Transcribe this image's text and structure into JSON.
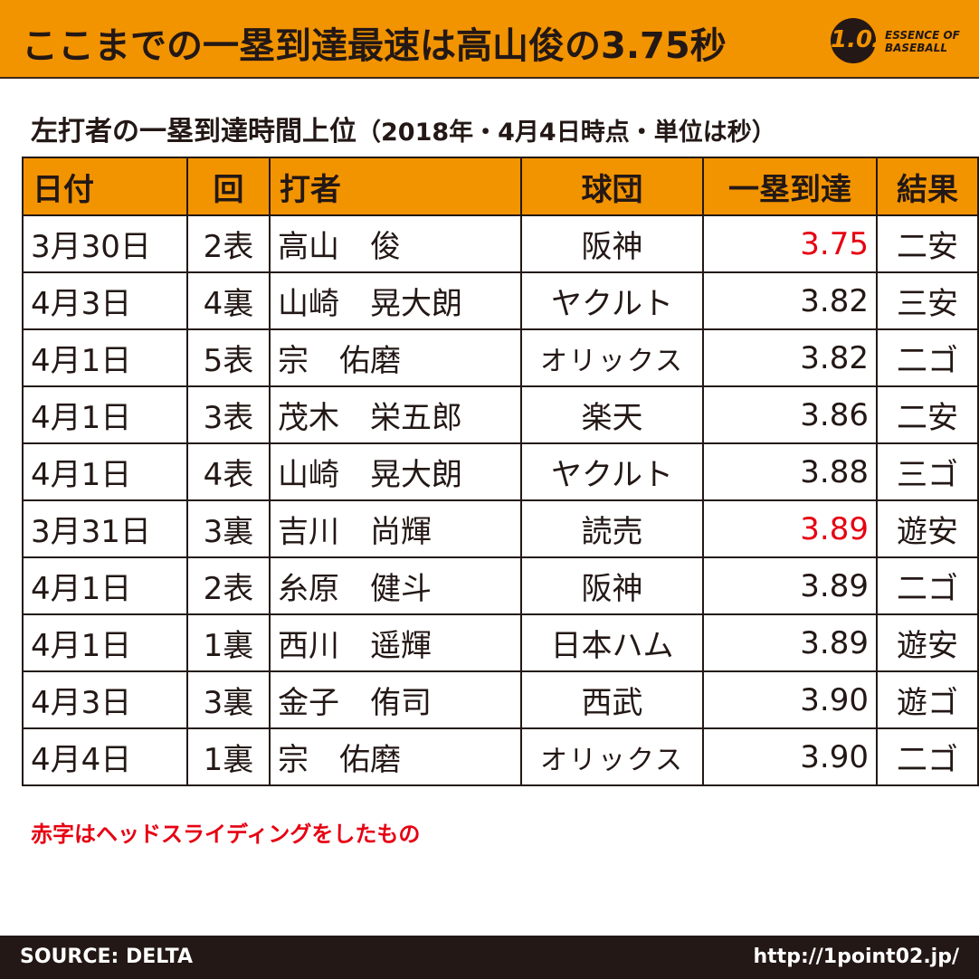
{
  "header": {
    "title": "ここまでの一塁到達最速は高山俊の3.75秒",
    "logo_number": "1.02",
    "logo_line1": "ESSENCE OF",
    "logo_line2": "BASEBALL"
  },
  "subtitle": {
    "main": "左打者の一塁到達時間上位",
    "note": "（2018年・4月4日時点・単位は秒）"
  },
  "chart_data": {
    "type": "table",
    "title": "左打者の一塁到達時間上位",
    "columns": [
      "日付",
      "回",
      "打者",
      "球団",
      "一塁到達",
      "結果"
    ],
    "rows": [
      {
        "date": "3月30日",
        "inning": "2表",
        "batter": "高山　俊",
        "team": "阪神",
        "time": "3.75",
        "result": "二安",
        "headfirst": true
      },
      {
        "date": "4月3日",
        "inning": "4裏",
        "batter": "山崎　晃大朗",
        "team": "ヤクルト",
        "time": "3.82",
        "result": "三安",
        "headfirst": false
      },
      {
        "date": "4月1日",
        "inning": "5表",
        "batter": "宗　佑磨",
        "team": "オリックス",
        "time": "3.82",
        "result": "二ゴ",
        "headfirst": false
      },
      {
        "date": "4月1日",
        "inning": "3表",
        "batter": "茂木　栄五郎",
        "team": "楽天",
        "time": "3.86",
        "result": "二安",
        "headfirst": false
      },
      {
        "date": "4月1日",
        "inning": "4表",
        "batter": "山崎　晃大朗",
        "team": "ヤクルト",
        "time": "3.88",
        "result": "三ゴ",
        "headfirst": false
      },
      {
        "date": "3月31日",
        "inning": "3裏",
        "batter": "吉川　尚輝",
        "team": "読売",
        "time": "3.89",
        "result": "遊安",
        "headfirst": true
      },
      {
        "date": "4月1日",
        "inning": "2表",
        "batter": "糸原　健斗",
        "team": "阪神",
        "time": "3.89",
        "result": "二ゴ",
        "headfirst": false
      },
      {
        "date": "4月1日",
        "inning": "1裏",
        "batter": "西川　遥輝",
        "team": "日本ハム",
        "time": "3.89",
        "result": "遊安",
        "headfirst": false
      },
      {
        "date": "4月3日",
        "inning": "3裏",
        "batter": "金子　侑司",
        "team": "西武",
        "time": "3.90",
        "result": "遊ゴ",
        "headfirst": false
      },
      {
        "date": "4月4日",
        "inning": "1裏",
        "batter": "宗　佑磨",
        "team": "オリックス",
        "time": "3.90",
        "result": "二ゴ",
        "headfirst": false
      }
    ],
    "highlight_color": "#e60012"
  },
  "note": "赤字はヘッドスライディングをしたもの",
  "footer": {
    "source": "SOURCE: DELTA",
    "url": "http://1point02.jp/"
  },
  "colors": {
    "accent": "#f29300",
    "dark": "#231815",
    "red": "#e60012"
  }
}
